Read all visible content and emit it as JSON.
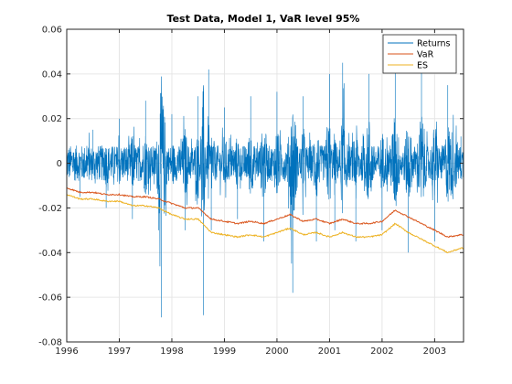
{
  "chart_data": {
    "type": "line",
    "title": "Test Data, Model 1, VaR level 95%",
    "xlabel": "",
    "ylabel": "",
    "xlim": [
      1996,
      2003.55
    ],
    "ylim": [
      -0.08,
      0.06
    ],
    "x_ticks": [
      "1996",
      "1997",
      "1998",
      "1999",
      "2000",
      "2001",
      "2002",
      "2003"
    ],
    "y_ticks": [
      "0.06",
      "0.04",
      "0.02",
      "0",
      "-0.02",
      "-0.04",
      "-0.06",
      "-0.08"
    ],
    "grid": true,
    "legend_position": "top-right",
    "colors": {
      "returns": "#0072BD",
      "var": "#D95319",
      "es": "#EDB120",
      "axis": "#262626",
      "grid": "#e6e6e6"
    },
    "series": [
      {
        "name": "Returns",
        "description_of_shape": "daily returns, volatile around 0",
        "x": [
          1996.0,
          1996.25,
          1996.5,
          1996.75,
          1997.0,
          1997.25,
          1997.5,
          1997.75,
          1997.8,
          1998.0,
          1998.25,
          1998.5,
          1998.6,
          1998.7,
          1998.75,
          1999.0,
          1999.25,
          1999.5,
          1999.75,
          2000.0,
          2000.25,
          2000.3,
          2000.5,
          2000.75,
          2001.0,
          2001.1,
          2001.25,
          2001.5,
          2001.75,
          2002.0,
          2002.25,
          2002.5,
          2002.75,
          2003.0,
          2003.25,
          2003.5
        ],
        "values": [
          0.01,
          -0.015,
          0.015,
          -0.02,
          0.02,
          -0.025,
          0.028,
          -0.03,
          -0.069,
          0.022,
          -0.03,
          0.03,
          -0.068,
          0.042,
          -0.03,
          0.025,
          -0.025,
          0.03,
          -0.035,
          0.032,
          -0.03,
          -0.058,
          0.03,
          -0.035,
          0.04,
          -0.03,
          0.045,
          -0.035,
          0.04,
          -0.03,
          0.045,
          -0.04,
          0.045,
          -0.035,
          0.035,
          0.012
        ]
      },
      {
        "name": "VaR",
        "x": [
          1996.0,
          1996.25,
          1996.5,
          1996.75,
          1997.0,
          1997.25,
          1997.5,
          1997.75,
          1998.0,
          1998.25,
          1998.5,
          1998.75,
          1999.0,
          1999.25,
          1999.5,
          1999.75,
          2000.0,
          2000.25,
          2000.5,
          2000.75,
          2001.0,
          2001.25,
          2001.5,
          2001.75,
          2002.0,
          2002.25,
          2002.5,
          2002.75,
          2003.0,
          2003.25,
          2003.5
        ],
        "values": [
          -0.011,
          -0.013,
          -0.013,
          -0.014,
          -0.014,
          -0.015,
          -0.015,
          -0.016,
          -0.018,
          -0.02,
          -0.02,
          -0.025,
          -0.026,
          -0.027,
          -0.026,
          -0.027,
          -0.025,
          -0.023,
          -0.026,
          -0.025,
          -0.027,
          -0.025,
          -0.027,
          -0.027,
          -0.026,
          -0.021,
          -0.024,
          -0.027,
          -0.03,
          -0.033,
          -0.032
        ]
      },
      {
        "name": "ES",
        "x": [
          1996.0,
          1996.25,
          1996.5,
          1996.75,
          1997.0,
          1997.25,
          1997.5,
          1997.75,
          1998.0,
          1998.25,
          1998.5,
          1998.75,
          1999.0,
          1999.25,
          1999.5,
          1999.75,
          2000.0,
          2000.25,
          2000.5,
          2000.75,
          2001.0,
          2001.25,
          2001.5,
          2001.75,
          2002.0,
          2002.25,
          2002.5,
          2002.75,
          2003.0,
          2003.25,
          2003.5
        ],
        "values": [
          -0.014,
          -0.016,
          -0.016,
          -0.017,
          -0.017,
          -0.019,
          -0.019,
          -0.02,
          -0.023,
          -0.025,
          -0.025,
          -0.031,
          -0.032,
          -0.033,
          -0.032,
          -0.033,
          -0.031,
          -0.029,
          -0.032,
          -0.031,
          -0.033,
          -0.031,
          -0.033,
          -0.033,
          -0.032,
          -0.027,
          -0.031,
          -0.034,
          -0.037,
          -0.04,
          -0.038
        ]
      }
    ]
  }
}
